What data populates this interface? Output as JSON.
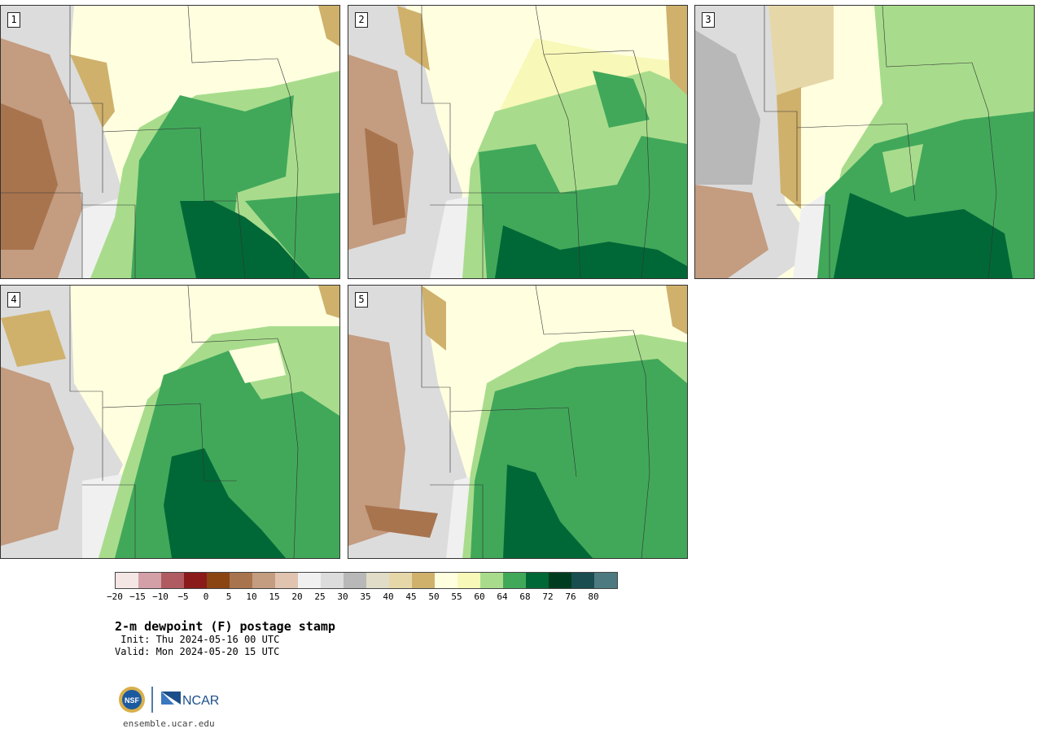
{
  "panels": [
    {
      "label": "1"
    },
    {
      "label": "2"
    },
    {
      "label": "3"
    },
    {
      "label": "4"
    },
    {
      "label": "5"
    }
  ],
  "colorbar": {
    "colors": [
      "#f5e6e6",
      "#d4a0a8",
      "#b05a62",
      "#8b1a1a",
      "#8b4513",
      "#a8744e",
      "#c49c80",
      "#e0c4b0",
      "#f0f0f0",
      "#dcdcdc",
      "#b8b8b8",
      "#e0dcc8",
      "#e6d7a8",
      "#cfb16c",
      "#ffffe0",
      "#f8f8b8",
      "#a8dc8c",
      "#41a85a",
      "#006837",
      "#003d20",
      "#1a4d50",
      "#4d7a80"
    ],
    "ticks": [
      "-20",
      "-15",
      "-10",
      "-5",
      "0",
      "5",
      "10",
      "15",
      "20",
      "25",
      "30",
      "35",
      "40",
      "45",
      "50",
      "55",
      "60",
      "64",
      "68",
      "72",
      "76",
      "80"
    ]
  },
  "title": "2-m dewpoint (F) postage stamp",
  "init": " Init: Thu 2024-05-16 00 UTC",
  "valid": "Valid: Mon 2024-05-20 15 UTC",
  "logos": {
    "nsf": "NSF",
    "ncar": "NCAR"
  },
  "url": "ensemble.ucar.edu"
}
